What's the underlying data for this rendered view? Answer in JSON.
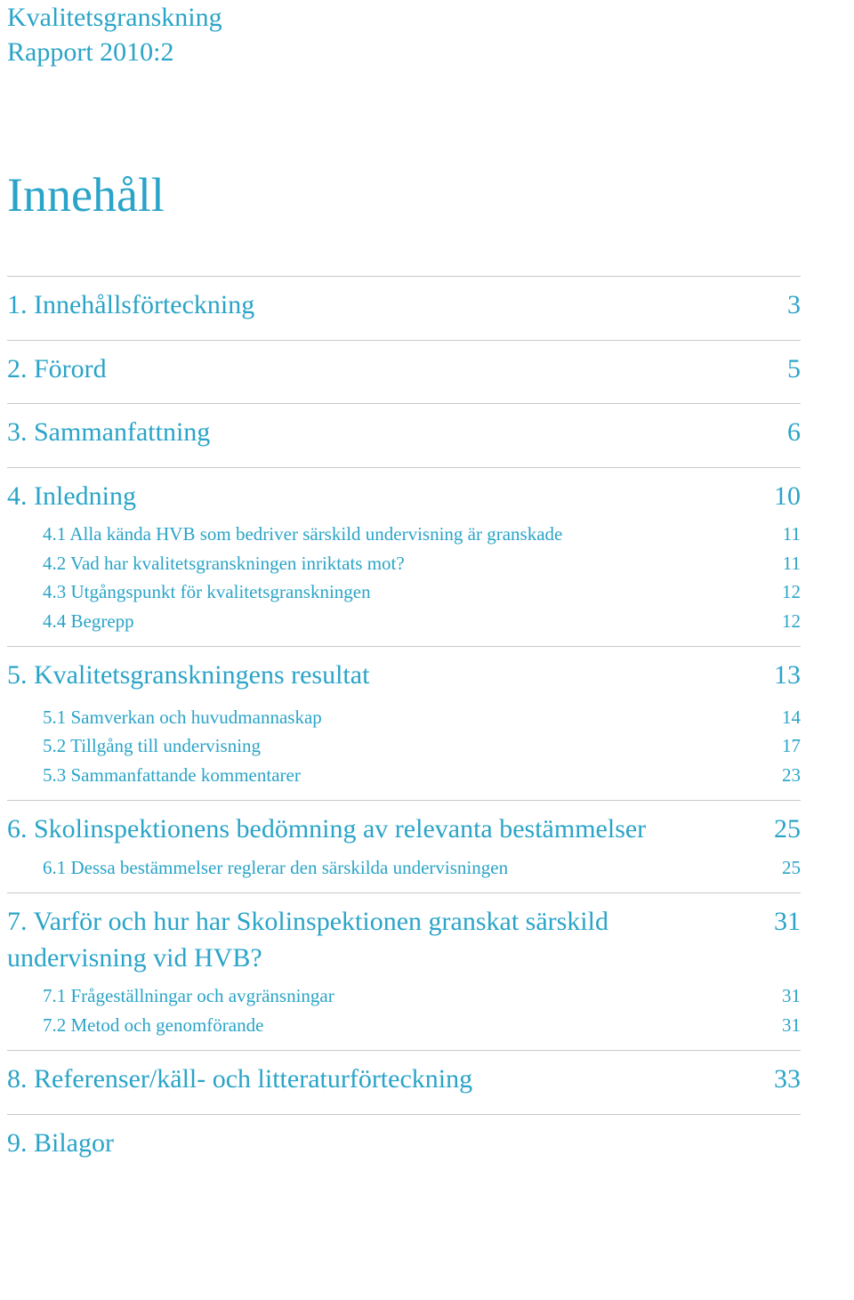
{
  "header": {
    "line1": "Kvalitetsgranskning",
    "line2": "Rapport 2010:2"
  },
  "title": "Innehåll",
  "colors": {
    "accent": "#2aa4c8",
    "rule": "#c9c9c9",
    "background": "#ffffff"
  },
  "typography": {
    "header_fontsize": 30,
    "title_fontsize": 54,
    "lv1_fontsize": 30,
    "sub_fontsize": 21,
    "font_family": "Georgia, serif"
  },
  "toc": [
    {
      "label": "1. Innehållsförteckning",
      "page": "3",
      "subs": []
    },
    {
      "label": "2. Förord",
      "page": "5",
      "subs": []
    },
    {
      "label": "3. Sammanfattning",
      "page": "6",
      "subs": []
    },
    {
      "label": "4. Inledning",
      "page": "10",
      "subs": [
        {
          "label": "4.1 Alla kända HVB som bedriver särskild undervisning är granskade",
          "page": "11"
        },
        {
          "label": "4.2 Vad har kvalitetsgranskningen inriktats mot?",
          "page": "11"
        },
        {
          "label": "4.3 Utgångspunkt för kvalitetsgranskningen",
          "page": "12"
        },
        {
          "label": "4.4 Begrepp",
          "page": "12"
        }
      ]
    },
    {
      "label": "5. Kvalitetsgranskningens resultat",
      "page": "13",
      "subs": [
        {
          "label": "5.1 Samverkan och huvudmannaskap",
          "page": "14"
        },
        {
          "label": "5.2 Tillgång till undervisning",
          "page": "17"
        },
        {
          "label": "5.3 Sammanfattande kommentarer",
          "page": "23"
        }
      ]
    },
    {
      "label": "6. Skolinspektionens bedömning av relevanta bestämmelser",
      "page": "25",
      "subs": [
        {
          "label": "6.1 Dessa bestämmelser reglerar den särskilda undervisningen",
          "page": "25"
        }
      ]
    },
    {
      "label": "7. Varför och hur har Skolinspektionen granskat särskild undervisning vid HVB?",
      "page": "31",
      "subs": [
        {
          "label": "7.1 Frågeställningar och avgränsningar",
          "page": "31"
        },
        {
          "label": "7.2 Metod och genomförande",
          "page": "31"
        }
      ]
    },
    {
      "label": "8. Referenser/käll- och litteraturförteckning",
      "page": "33",
      "subs": []
    },
    {
      "label": "9. Bilagor",
      "page": "",
      "subs": []
    }
  ]
}
